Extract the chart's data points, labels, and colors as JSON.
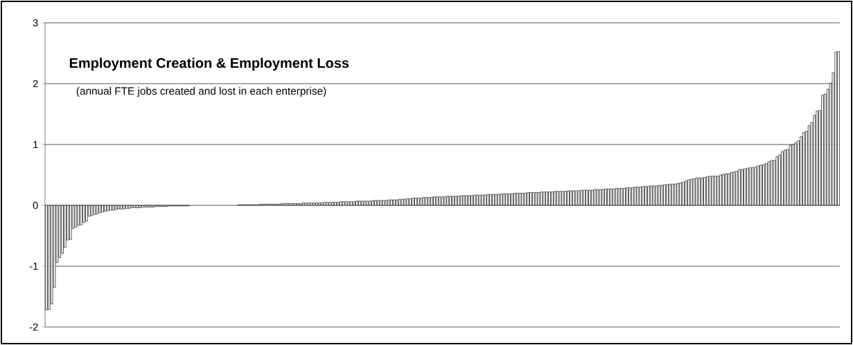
{
  "chart_data": {
    "type": "bar",
    "title": "Employment Creation & Employment Loss",
    "subtitle": "(annual FTE jobs created and lost in each enterprise)",
    "categories": [
      null,
      null,
      null,
      null,
      null,
      null,
      null,
      null,
      null,
      null,
      null,
      null,
      null,
      null,
      null,
      null,
      null,
      null,
      null,
      null,
      null,
      null,
      null,
      null,
      null,
      null,
      null,
      null,
      null,
      null,
      null,
      null,
      null,
      null,
      null,
      null,
      null,
      null,
      null,
      null,
      null,
      null,
      null,
      null,
      null,
      null,
      null,
      null,
      null,
      null,
      null,
      null,
      null,
      null,
      null,
      null,
      null,
      null,
      null,
      null,
      null,
      null,
      null,
      null,
      null,
      null,
      null,
      null,
      null,
      null,
      null,
      null,
      null,
      null,
      null,
      null,
      null,
      null,
      null,
      null,
      null,
      null,
      null,
      null,
      null,
      null,
      null,
      null,
      null,
      null,
      null,
      null,
      null,
      null,
      null,
      null,
      null,
      null,
      null,
      null,
      null,
      null,
      null,
      null,
      null,
      null,
      null,
      null,
      null,
      null,
      null,
      null,
      null,
      null,
      null,
      null,
      null,
      null,
      null,
      null,
      null,
      null,
      null,
      null,
      null,
      null,
      null,
      null,
      null,
      null,
      null,
      null,
      null,
      null,
      null,
      null,
      null,
      null,
      null,
      null,
      null,
      null,
      null,
      null,
      null,
      null,
      null,
      null,
      null,
      null,
      null,
      null,
      null,
      null,
      null,
      null,
      null,
      null,
      null,
      null,
      null,
      null,
      null,
      null,
      null,
      null,
      null,
      null,
      null,
      null,
      null,
      null,
      null,
      null,
      null,
      null,
      null,
      null,
      null,
      null,
      null,
      null,
      null,
      null,
      null,
      null,
      null,
      null,
      null,
      null,
      null,
      null,
      null,
      null,
      null,
      null,
      null,
      null,
      null,
      null,
      null,
      null,
      null,
      null,
      null,
      null,
      null,
      null,
      null,
      null,
      null,
      null,
      null,
      null,
      null,
      null,
      null,
      null,
      null,
      null,
      null,
      null,
      null,
      null,
      null,
      null,
      null,
      null,
      null,
      null,
      null,
      null,
      null,
      null,
      null,
      null,
      null,
      null,
      null,
      null,
      null,
      null,
      null,
      null,
      null,
      null,
      null,
      null,
      null,
      null,
      null,
      null,
      null,
      null,
      null,
      null,
      null,
      null,
      null,
      null,
      null,
      null,
      null,
      null,
      null,
      null,
      null,
      null,
      null,
      null,
      null,
      null,
      null,
      null,
      null,
      null,
      null,
      null,
      null,
      null,
      null,
      null,
      null,
      null,
      null,
      null,
      null,
      null,
      null,
      null,
      null,
      null,
      null,
      null,
      null,
      null,
      null
    ],
    "values": [
      -1.72,
      -1.71,
      -1.62,
      -1.35,
      -0.94,
      -0.86,
      -0.79,
      -0.69,
      -0.57,
      -0.56,
      -0.38,
      -0.36,
      -0.33,
      -0.32,
      -0.28,
      -0.26,
      -0.18,
      -0.17,
      -0.15,
      -0.14,
      -0.12,
      -0.11,
      -0.1,
      -0.09,
      -0.08,
      -0.08,
      -0.07,
      -0.06,
      -0.06,
      -0.06,
      -0.05,
      -0.05,
      -0.04,
      -0.04,
      -0.04,
      -0.04,
      -0.03,
      -0.03,
      -0.03,
      -0.03,
      -0.03,
      -0.02,
      -0.02,
      -0.02,
      -0.02,
      -0.02,
      -0.01,
      -0.01,
      -0.01,
      -0.01,
      -0.01,
      -0.01,
      -0.01,
      -0.01,
      0,
      0,
      0,
      0,
      0,
      0,
      0,
      0,
      0,
      0,
      0,
      0,
      0,
      0,
      0,
      0,
      0,
      0,
      0.01,
      0.01,
      0.01,
      0.01,
      0.01,
      0.01,
      0.01,
      0.01,
      0.02,
      0.02,
      0.02,
      0.02,
      0.02,
      0.02,
      0.02,
      0.02,
      0.03,
      0.03,
      0.03,
      0.03,
      0.03,
      0.03,
      0.03,
      0.03,
      0.04,
      0.04,
      0.04,
      0.04,
      0.04,
      0.04,
      0.04,
      0.04,
      0.05,
      0.05,
      0.05,
      0.05,
      0.05,
      0.05,
      0.06,
      0.06,
      0.06,
      0.06,
      0.06,
      0.06,
      0.07,
      0.07,
      0.07,
      0.07,
      0.07,
      0.07,
      0.08,
      0.08,
      0.08,
      0.08,
      0.08,
      0.08,
      0.09,
      0.09,
      0.09,
      0.09,
      0.1,
      0.1,
      0.1,
      0.11,
      0.11,
      0.12,
      0.12,
      0.12,
      0.12,
      0.13,
      0.13,
      0.13,
      0.13,
      0.14,
      0.14,
      0.14,
      0.14,
      0.14,
      0.15,
      0.15,
      0.15,
      0.15,
      0.15,
      0.16,
      0.16,
      0.16,
      0.16,
      0.16,
      0.17,
      0.17,
      0.17,
      0.17,
      0.17,
      0.18,
      0.18,
      0.18,
      0.18,
      0.18,
      0.19,
      0.19,
      0.19,
      0.19,
      0.19,
      0.2,
      0.2,
      0.2,
      0.2,
      0.2,
      0.21,
      0.21,
      0.21,
      0.21,
      0.21,
      0.22,
      0.22,
      0.22,
      0.22,
      0.22,
      0.23,
      0.23,
      0.23,
      0.23,
      0.23,
      0.24,
      0.24,
      0.24,
      0.24,
      0.24,
      0.25,
      0.25,
      0.25,
      0.25,
      0.25,
      0.26,
      0.26,
      0.26,
      0.26,
      0.27,
      0.27,
      0.27,
      0.27,
      0.28,
      0.28,
      0.28,
      0.28,
      0.29,
      0.29,
      0.29,
      0.3,
      0.3,
      0.3,
      0.31,
      0.31,
      0.31,
      0.32,
      0.32,
      0.32,
      0.33,
      0.33,
      0.34,
      0.34,
      0.35,
      0.35,
      0.35,
      0.36,
      0.37,
      0.38,
      0.4,
      0.42,
      0.43,
      0.44,
      0.45,
      0.45,
      0.45,
      0.46,
      0.47,
      0.48,
      0.48,
      0.48,
      0.48,
      0.5,
      0.51,
      0.52,
      0.52,
      0.54,
      0.55,
      0.56,
      0.59,
      0.59,
      0.6,
      0.61,
      0.62,
      0.62,
      0.63,
      0.65,
      0.66,
      0.67,
      0.69,
      0.72,
      0.74,
      0.74,
      0.8,
      0.83,
      0.88,
      0.91,
      0.92,
      0.99,
      1.0,
      1.03,
      1.06,
      1.13,
      1.2,
      1.22,
      1.31,
      1.36,
      1.48,
      1.55,
      1.56,
      1.81,
      1.83,
      1.91,
      2.01,
      2.18,
      2.52,
      2.53
    ],
    "color": "#ffffff",
    "ylim": [
      -2,
      3
    ],
    "yticks": [
      -2,
      -1,
      0,
      1,
      2,
      3
    ],
    "grid": "y"
  }
}
